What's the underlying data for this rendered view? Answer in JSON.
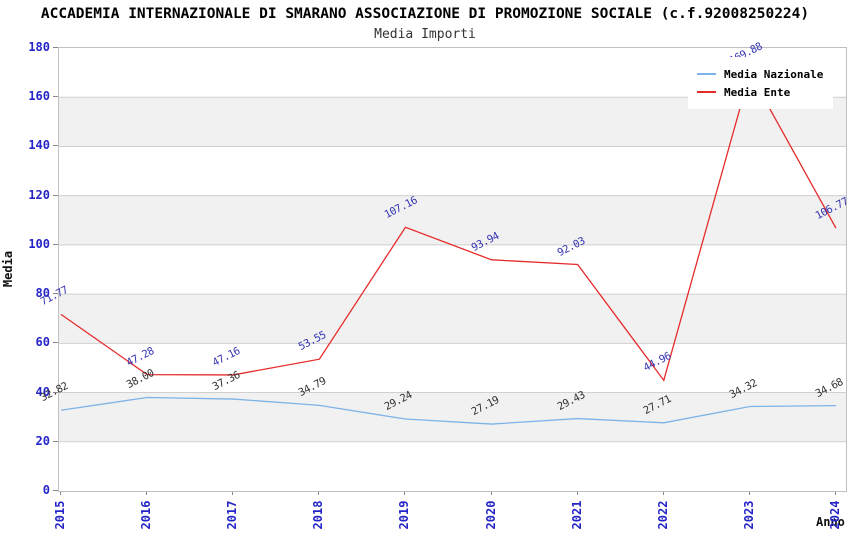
{
  "chart_data": {
    "type": "line",
    "title": "ACCADEMIA INTERNAZIONALE DI SMARANO ASSOCIAZIONE DI PROMOZIONE SOCIALE (c.f.92008250224)",
    "subtitle": "Media Importi",
    "xlabel": "Anno",
    "ylabel": "Media",
    "categories": [
      "2015",
      "2016",
      "2017",
      "2018",
      "2019",
      "2020",
      "2021",
      "2022",
      "2023",
      "2024"
    ],
    "ylim": [
      0,
      180
    ],
    "ytick_step": 20,
    "grid": "horizontal",
    "band_fill": "alternating",
    "legend_position": "top-right",
    "series": [
      {
        "name": "Media Nazionale",
        "color": "#7eb3e8",
        "label_color": "#303030",
        "values": [
          32.82,
          38.0,
          37.36,
          34.79,
          29.24,
          27.19,
          29.43,
          27.71,
          34.32,
          34.68
        ],
        "labels": [
          "32.82",
          "38.00",
          "37.36",
          "34.79",
          "29.24",
          "27.19",
          "29.43",
          "27.71",
          "34.32",
          "34.68"
        ]
      },
      {
        "name": "Media Ente",
        "color": "#e62b2b",
        "label_color": "#3434b4",
        "values": [
          71.77,
          47.28,
          47.16,
          53.55,
          107.16,
          93.94,
          92.03,
          44.96,
          169.88,
          106.77
        ],
        "labels": [
          "71.77",
          "47.28",
          "47.16",
          "53.55",
          "107.16",
          "93.94",
          "92.03",
          "44.96",
          "169.88",
          "106.77"
        ]
      }
    ],
    "colors": {
      "axis_tick_text": "#2424c8",
      "grid_line": "#d0d0d0",
      "band_gray": "#f1f1f1",
      "plot_border": "#c0c0c0",
      "title_text": "#000000",
      "subtitle_text": "#333333"
    }
  }
}
